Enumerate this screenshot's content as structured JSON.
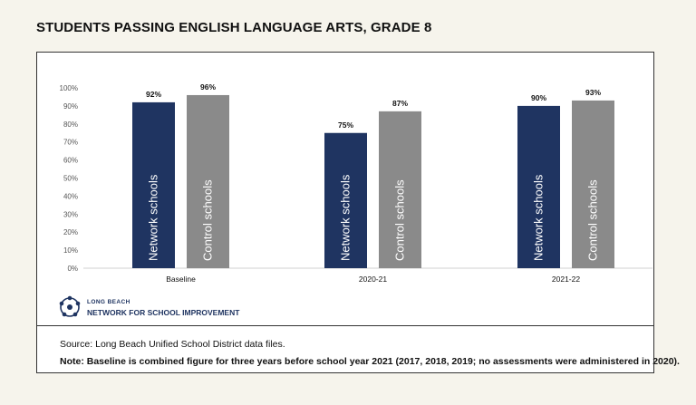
{
  "title": "STUDENTS PASSING ENGLISH LANGUAGE ARTS, GRADE 8",
  "chart_data": {
    "type": "bar",
    "title": "STUDENTS PASSING ENGLISH LANGUAGE ARTS, GRADE 8",
    "categories": [
      "Baseline",
      "2020-21",
      "2021-22"
    ],
    "series": [
      {
        "name": "Network schools",
        "values": [
          92,
          75,
          90
        ],
        "labels": [
          "92%",
          "75%",
          "90%"
        ],
        "color": "#1f3461"
      },
      {
        "name": "Control schools",
        "values": [
          96,
          87,
          93
        ],
        "labels": [
          "96%",
          "87%",
          "93%"
        ],
        "color": "#8a8a8a"
      }
    ],
    "ylim": [
      0,
      100
    ],
    "yticks": [
      "0%",
      "10%",
      "20%",
      "30%",
      "40%",
      "50%",
      "60%",
      "70%",
      "80%",
      "90%",
      "100%"
    ],
    "grid": false,
    "legend": "none",
    "xlabel": "",
    "ylabel": ""
  },
  "logo": {
    "line1": "LONG BEACH",
    "line2": "NETWORK FOR SCHOOL IMPROVEMENT",
    "icon": "network-logo-icon",
    "color": "#1f3461"
  },
  "footer": {
    "source": "Source: Long Beach Unified School District data files.",
    "note": "Note: Baseline is combined figure for three years before school year 2021 (2017, 2018, 2019; no assessments were administered in 2020)."
  }
}
